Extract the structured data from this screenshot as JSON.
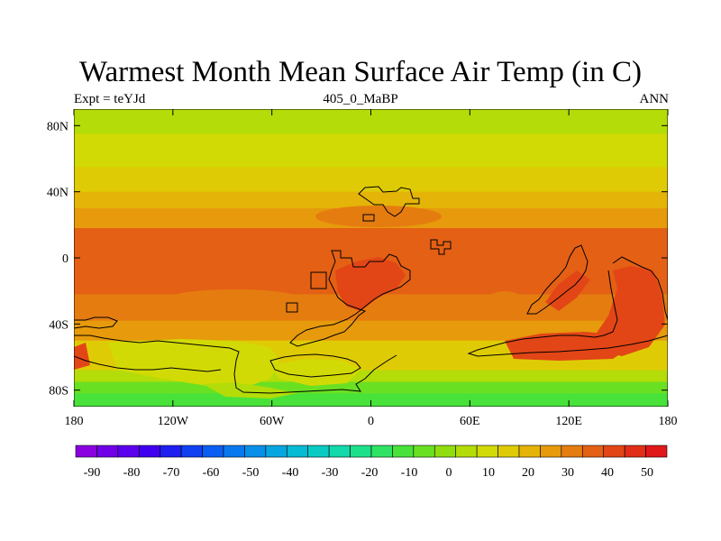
{
  "title": "Warmest Month Mean Surface Air Temp (in C)",
  "subtitle_left": "Expt = teYJd",
  "subtitle_center": "405_0_MaBP",
  "subtitle_right": "ANN",
  "y_ticks": [
    {
      "label": "80N",
      "lat": 80
    },
    {
      "label": "40N",
      "lat": 40
    },
    {
      "label": "0",
      "lat": 0
    },
    {
      "label": "40S",
      "lat": -40
    },
    {
      "label": "80S",
      "lat": -80
    }
  ],
  "x_ticks": [
    {
      "label": "180",
      "lon": -180
    },
    {
      "label": "120W",
      "lon": -120
    },
    {
      "label": "60W",
      "lon": -60
    },
    {
      "label": "0",
      "lon": 0
    },
    {
      "label": "60E",
      "lon": 60
    },
    {
      "label": "120E",
      "lon": 120
    },
    {
      "label": "180",
      "lon": 180
    }
  ],
  "colorbar": {
    "labels": [
      "-90",
      "-80",
      "-70",
      "-60",
      "-50",
      "-40",
      "-30",
      "-20",
      "-10",
      "0",
      "10",
      "20",
      "30",
      "40",
      "50"
    ],
    "colors": [
      "#8a00e0",
      "#7000e8",
      "#5a00ec",
      "#4000ef",
      "#1f1ff0",
      "#1040f2",
      "#0a5ef2",
      "#0878ee",
      "#0890e8",
      "#08a6e0",
      "#08bad4",
      "#0acbc4",
      "#12d8aa",
      "#1ee08a",
      "#2ee264",
      "#48e23a",
      "#6ae022",
      "#90dd10",
      "#b4dc08",
      "#d2da05",
      "#dfcb05",
      "#e4b408",
      "#e69a0c",
      "#e57c10",
      "#e46014",
      "#e24616",
      "#e22e18",
      "#e0181a"
    ]
  },
  "map_bands": [
    {
      "lat_top": 90,
      "lat_bottom": 75,
      "color": "#b4dc08"
    },
    {
      "lat_top": 75,
      "lat_bottom": 55,
      "color": "#d2da05"
    },
    {
      "lat_top": 55,
      "lat_bottom": 40,
      "color": "#dfcb05"
    },
    {
      "lat_top": 40,
      "lat_bottom": 30,
      "color": "#e4b408"
    },
    {
      "lat_top": 30,
      "lat_bottom": 18,
      "color": "#e69a0c"
    },
    {
      "lat_top": 18,
      "lat_bottom": -22,
      "color": "#e46014"
    },
    {
      "lat_top": -22,
      "lat_bottom": -38,
      "color": "#e57c10"
    },
    {
      "lat_top": -38,
      "lat_bottom": -50,
      "color": "#e69a0c"
    },
    {
      "lat_top": -50,
      "lat_bottom": -68,
      "color": "#dfcb05"
    },
    {
      "lat_top": -68,
      "lat_bottom": -75,
      "color": "#b4dc08"
    },
    {
      "lat_top": -75,
      "lat_bottom": -82,
      "color": "#6ae022"
    },
    {
      "lat_top": -82,
      "lat_bottom": -90,
      "color": "#48e23a"
    }
  ],
  "colors": {
    "hot": "#e24616",
    "coast": "#000000"
  }
}
